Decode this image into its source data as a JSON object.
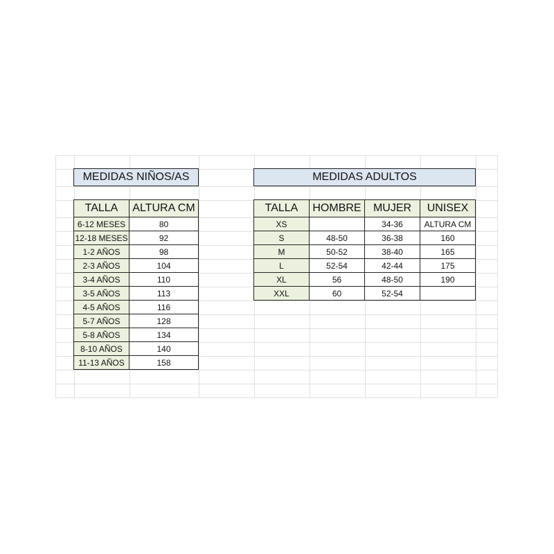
{
  "kids": {
    "title": "MEDIDAS NIÑOS/AS",
    "headers": [
      "TALLA",
      "ALTURA CM"
    ],
    "rows": [
      [
        "6-12 MESES",
        "80"
      ],
      [
        "12-18 MESES",
        "92"
      ],
      [
        "1-2 AÑOS",
        "98"
      ],
      [
        "2-3 AÑOS",
        "104"
      ],
      [
        "3-4 AÑOS",
        "110"
      ],
      [
        "3-5 AÑOS",
        "113"
      ],
      [
        "4-5 AÑOS",
        "116"
      ],
      [
        "5-7 AÑOS",
        "128"
      ],
      [
        "5-8 AÑOS",
        "134"
      ],
      [
        "8-10 AÑOS",
        "140"
      ],
      [
        "11-13 AÑOS",
        "158"
      ]
    ]
  },
  "adults": {
    "title": "MEDIDAS ADULTOS",
    "headers": [
      "TALLA",
      "HOMBRE",
      "MUJER",
      "UNISEX"
    ],
    "rows": [
      [
        "XS",
        "",
        "34-36",
        "ALTURA CM"
      ],
      [
        "S",
        "48-50",
        "36-38",
        "160"
      ],
      [
        "M",
        "50-52",
        "38-40",
        "165"
      ],
      [
        "L",
        "52-54",
        "42-44",
        "175"
      ],
      [
        "XL",
        "56",
        "48-50",
        "190"
      ],
      [
        "XXL",
        "60",
        "52-54",
        ""
      ]
    ]
  },
  "colors": {
    "title_bg": "#dce6f1",
    "header_bg": "#ebf1de",
    "gridline": "#e0e0e0",
    "border": "#222222"
  }
}
